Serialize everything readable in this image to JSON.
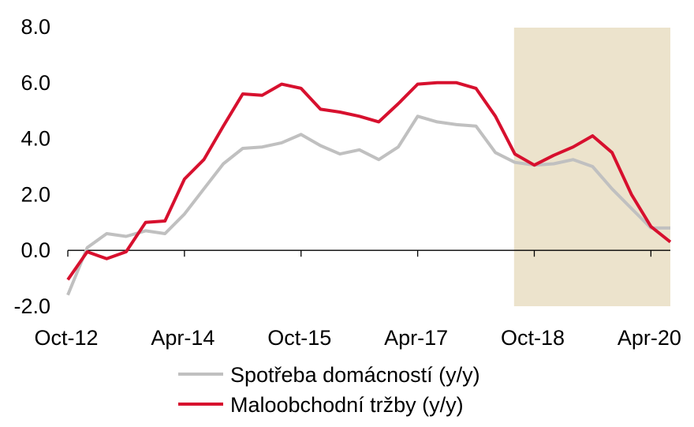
{
  "chart_data": {
    "type": "line",
    "title": "",
    "xlabel": "",
    "ylabel": "",
    "ylim": [
      -2,
      8
    ],
    "yticks": [
      "8.0",
      "6.0",
      "4.0",
      "2.0",
      "0.0",
      "-2.0"
    ],
    "ytick_values": [
      8,
      6,
      4,
      2,
      0,
      -2
    ],
    "x_tick_labels": [
      "Oct-12",
      "Apr-14",
      "Oct-15",
      "Apr-17",
      "Oct-18",
      "Apr-20"
    ],
    "x": [
      "Oct-12",
      "Jan-13",
      "Apr-13",
      "Jul-13",
      "Oct-13",
      "Jan-14",
      "Apr-14",
      "Jul-14",
      "Oct-14",
      "Jan-15",
      "Apr-15",
      "Jul-15",
      "Oct-15",
      "Jan-16",
      "Apr-16",
      "Jul-16",
      "Oct-16",
      "Jan-17",
      "Apr-17",
      "Jul-17",
      "Oct-17",
      "Jan-18",
      "Apr-18",
      "Jul-18",
      "Oct-18",
      "Jan-19",
      "Apr-19",
      "Jul-19",
      "Oct-19",
      "Jan-20",
      "Apr-20",
      "Jul-20"
    ],
    "shaded_region": {
      "from": "Jul-18",
      "to": "Jul-20",
      "color": "#ece3cc"
    },
    "grid": false,
    "legend_position": "bottom",
    "series": [
      {
        "name": "Spotřeba domácností (y/y)",
        "color": "#c0c0c0",
        "values": [
          -1.6,
          0.1,
          0.6,
          0.5,
          0.7,
          0.6,
          1.3,
          2.2,
          3.1,
          3.65,
          3.7,
          3.85,
          4.15,
          3.75,
          3.45,
          3.6,
          3.25,
          3.7,
          4.8,
          4.6,
          4.5,
          4.45,
          3.5,
          3.15,
          3.05,
          3.1,
          3.25,
          3.0,
          2.2,
          1.5,
          0.8,
          0.8
        ]
      },
      {
        "name": "Maloobchodní tržby (y/y)",
        "color": "#d7102e",
        "values": [
          -1.05,
          -0.05,
          -0.3,
          -0.05,
          1.0,
          1.05,
          2.55,
          3.25,
          4.45,
          5.6,
          5.55,
          5.95,
          5.8,
          5.05,
          4.95,
          4.8,
          4.6,
          5.25,
          5.95,
          6.0,
          6.0,
          5.8,
          4.8,
          3.45,
          3.05,
          3.4,
          3.7,
          4.1,
          3.5,
          2.0,
          0.85,
          0.3
        ]
      }
    ]
  }
}
